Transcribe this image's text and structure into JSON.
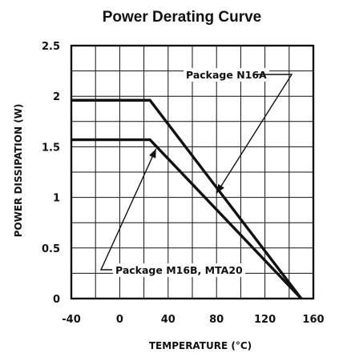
{
  "chart_data": {
    "type": "line",
    "title": "Power Derating Curve",
    "xlabel": "TEMPERATURE (°C)",
    "ylabel": "POWER DISSIPATION (W)",
    "xlim": [
      -40,
      160
    ],
    "ylim": [
      0,
      2.5
    ],
    "x_ticks": [
      "-40",
      "0",
      "40",
      "80",
      "120",
      "160"
    ],
    "y_ticks": [
      "0",
      "0.5",
      "1",
      "1.5",
      "2",
      "2.5"
    ],
    "grid": true,
    "series": [
      {
        "name": "Package N16A",
        "x": [
          -40,
          25,
          150
        ],
        "y": [
          1.96,
          1.96,
          0
        ]
      },
      {
        "name": "Package M16B, MTA20",
        "x": [
          -40,
          25,
          150
        ],
        "y": [
          1.57,
          1.57,
          0
        ]
      }
    ],
    "annotations": [
      {
        "text": "Package N16A",
        "series": 0,
        "point": [
          80,
          1.04
        ]
      },
      {
        "text": "Package M16B, MTA20",
        "series": 1,
        "point": [
          30,
          1.48
        ]
      }
    ],
    "colors": {
      "line": "#111111",
      "background": "#ffffff"
    }
  }
}
